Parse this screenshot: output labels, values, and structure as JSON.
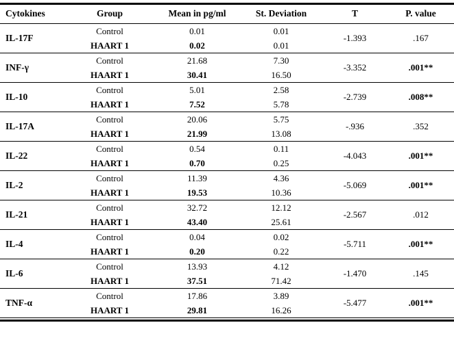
{
  "table": {
    "headers": [
      "Cytokines",
      "Group",
      "Mean in pg/ml",
      "St. Deviation",
      "T",
      "P. value"
    ],
    "rows": [
      {
        "cytokine": "IL-17F",
        "control": {
          "group": "Control",
          "mean": "0.01",
          "sd": "0.01"
        },
        "haart": {
          "group": "HAART 1",
          "mean": "0.02",
          "sd": "0.01"
        },
        "t": "-1.393",
        "p": ".167",
        "p_strong": false
      },
      {
        "cytokine": "INF-γ",
        "control": {
          "group": "Control",
          "mean": "21.68",
          "sd": "7.30"
        },
        "haart": {
          "group": "HAART 1",
          "mean": "30.41",
          "sd": "16.50"
        },
        "t": "-3.352",
        "p": ".001**",
        "p_strong": true
      },
      {
        "cytokine": "IL-10",
        "control": {
          "group": "Control",
          "mean": "5.01",
          "sd": "2.58"
        },
        "haart": {
          "group": "HAART 1",
          "mean": "7.52",
          "sd": "5.78"
        },
        "t": "-2.739",
        "p": ".008**",
        "p_strong": true
      },
      {
        "cytokine": "IL-17A",
        "control": {
          "group": "Control",
          "mean": "20.06",
          "sd": "5.75"
        },
        "haart": {
          "group": "HAART 1",
          "mean": "21.99",
          "sd": "13.08"
        },
        "t": "-.936",
        "p": ".352",
        "p_strong": false
      },
      {
        "cytokine": "IL-22",
        "control": {
          "group": "Control",
          "mean": "0.54",
          "sd": "0.11"
        },
        "haart": {
          "group": "HAART 1",
          "mean": "0.70",
          "sd": "0.25"
        },
        "t": "-4.043",
        "p": ".001**",
        "p_strong": true
      },
      {
        "cytokine": "IL-2",
        "control": {
          "group": "Control",
          "mean": "11.39",
          "sd": "4.36"
        },
        "haart": {
          "group": "HAART 1",
          "mean": "19.53",
          "sd": "10.36"
        },
        "t": "-5.069",
        "p": ".001**",
        "p_strong": true
      },
      {
        "cytokine": "IL-21",
        "control": {
          "group": "Control",
          "mean": "32.72",
          "sd": "12.12"
        },
        "haart": {
          "group": "HAART 1",
          "mean": "43.40",
          "sd": "25.61"
        },
        "t": "-2.567",
        "p": ".012",
        "p_strong": false
      },
      {
        "cytokine": "IL-4",
        "control": {
          "group": "Control",
          "mean": "0.04",
          "sd": "0.02"
        },
        "haart": {
          "group": "HAART 1",
          "mean": "0.20",
          "sd": "0.22"
        },
        "t": "-5.711",
        "p": ".001**",
        "p_strong": true
      },
      {
        "cytokine": "IL-6",
        "control": {
          "group": "Control",
          "mean": "13.93",
          "sd": "4.12"
        },
        "haart": {
          "group": "HAART 1",
          "mean": "37.51",
          "sd": "71.42"
        },
        "t": "-1.470",
        "p": ".145",
        "p_strong": false
      },
      {
        "cytokine": "TNF-α",
        "control": {
          "group": "Control",
          "mean": "17.86",
          "sd": "3.89"
        },
        "haart": {
          "group": "HAART 1",
          "mean": "29.81",
          "sd": "16.26"
        },
        "t": "-5.477",
        "p": ".001**",
        "p_strong": true
      }
    ]
  }
}
